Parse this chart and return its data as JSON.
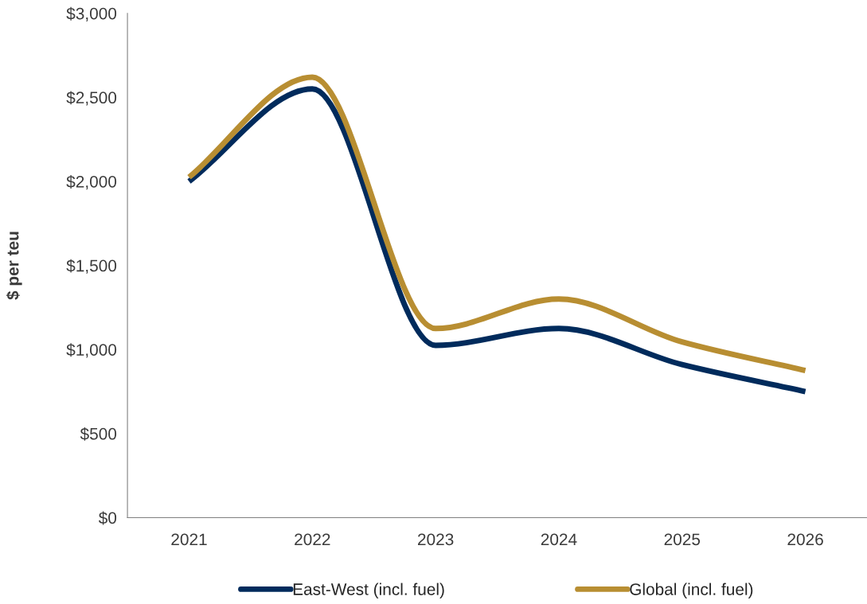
{
  "chart_data": {
    "type": "line",
    "ylabel": "$ per teu",
    "categories": [
      "2021",
      "2022",
      "2023",
      "2024",
      "2025",
      "2026"
    ],
    "series": [
      {
        "name": "East-West (incl. fuel)",
        "color": "#002b5c",
        "values": [
          2000,
          2550,
          1025,
          1125,
          910,
          750
        ]
      },
      {
        "name": "Global (incl. fuel)",
        "color": "#b88e32",
        "values": [
          2025,
          2620,
          1125,
          1300,
          1045,
          875
        ]
      }
    ],
    "ylim": [
      0,
      3000
    ],
    "yticks": [
      {
        "value": 0,
        "label": "$0"
      },
      {
        "value": 500,
        "label": "$500"
      },
      {
        "value": 1000,
        "label": "$1,000"
      },
      {
        "value": 1500,
        "label": "$1,500"
      },
      {
        "value": 2000,
        "label": "$2,000"
      },
      {
        "value": 2500,
        "label": "$2,500"
      },
      {
        "value": 3000,
        "label": "$3,000"
      }
    ],
    "grid": false,
    "legend": "bottom",
    "marker": "none",
    "line_style": "solid"
  }
}
